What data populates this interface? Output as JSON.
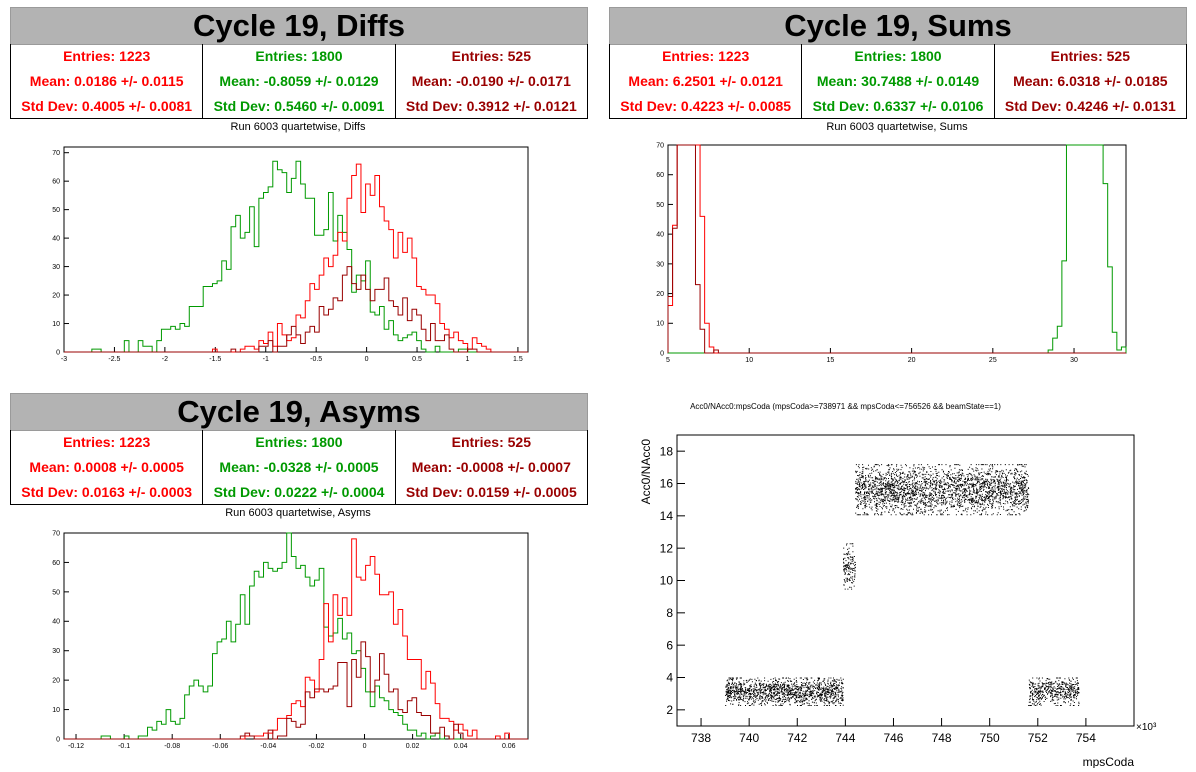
{
  "colors": {
    "series1": "#ff0000",
    "series2": "#009900",
    "series3": "#990000",
    "title_bg": "#b3b3b3"
  },
  "diffs": {
    "title": "Cycle 19, Diffs",
    "subtitle": "Run 6003 quartetwise, Diffs",
    "stats": [
      {
        "entries": "Entries: 1223",
        "mean": "Mean: 0.0186 +/- 0.0115",
        "std": "Std Dev: 0.4005 +/- 0.0081"
      },
      {
        "entries": "Entries: 1800",
        "mean": "Mean: -0.8059 +/- 0.0129",
        "std": "Std Dev: 0.5460 +/- 0.0091"
      },
      {
        "entries": "Entries: 525",
        "mean": "Mean: -0.0190 +/- 0.0171",
        "std": "Std Dev: 0.3912 +/- 0.0121"
      }
    ]
  },
  "sums": {
    "title": "Cycle 19, Sums",
    "subtitle": "Run 6003 quartetwise, Sums",
    "stats": [
      {
        "entries": "Entries: 1223",
        "mean": "Mean: 6.2501 +/- 0.0121",
        "std": "Std Dev: 0.4223 +/- 0.0085"
      },
      {
        "entries": "Entries: 1800",
        "mean": "Mean: 30.7488 +/- 0.0149",
        "std": "Std Dev: 0.6337 +/- 0.0106"
      },
      {
        "entries": "Entries: 525",
        "mean": "Mean: 6.0318 +/- 0.0185",
        "std": "Std Dev: 0.4246 +/- 0.0131"
      }
    ]
  },
  "asyms": {
    "title": "Cycle 19, Asyms",
    "subtitle": "Run 6003 quartetwise, Asyms",
    "stats": [
      {
        "entries": "Entries: 1223",
        "mean": "Mean: 0.0008 +/- 0.0005",
        "std": "Std Dev: 0.0163 +/- 0.0003"
      },
      {
        "entries": "Entries: 1800",
        "mean": "Mean: -0.0328 +/- 0.0005",
        "std": "Std Dev: 0.0222 +/- 0.0004"
      },
      {
        "entries": "Entries: 525",
        "mean": "Mean: -0.0008 +/- 0.0007",
        "std": "Std Dev: 0.0159 +/- 0.0005"
      }
    ]
  },
  "chart_data": [
    {
      "type": "histogram",
      "xlim": [
        -3,
        1.6
      ],
      "ylim": [
        0,
        72
      ],
      "xticks": [
        "-3",
        "-2.5",
        "-2",
        "-1.5",
        "-1",
        "-0.5",
        "0",
        "0.5",
        "1",
        "1.5"
      ],
      "yticks": [
        "0",
        "10",
        "20",
        "30",
        "40",
        "50",
        "60",
        "70"
      ],
      "series": [
        {
          "color": "#009900",
          "mean": -0.8059,
          "std": 0.546,
          "entries": 1800
        },
        {
          "color": "#ff0000",
          "mean": 0.0186,
          "std": 0.4005,
          "entries": 1223
        },
        {
          "color": "#990000",
          "mean": -0.019,
          "std": 0.3912,
          "entries": 525
        }
      ]
    },
    {
      "type": "histogram",
      "xlim": [
        5,
        33.2
      ],
      "ylim": [
        0,
        70
      ],
      "xticks": [
        "5",
        "10",
        "15",
        "20",
        "25",
        "30"
      ],
      "yticks": [
        "0",
        "10",
        "20",
        "30",
        "40",
        "50",
        "60",
        "70"
      ],
      "series": [
        {
          "color": "#009900",
          "mean": 30.7488,
          "std": 0.6337,
          "entries": 1800
        },
        {
          "color": "#ff0000",
          "mean": 6.2501,
          "std": 0.4223,
          "entries": 1223
        },
        {
          "color": "#990000",
          "mean": 6.0318,
          "std": 0.4246,
          "entries": 525
        }
      ]
    },
    {
      "type": "histogram",
      "xlim": [
        -0.125,
        0.068
      ],
      "ylim": [
        0,
        70
      ],
      "xticks": [
        "-0.12",
        "-0.1",
        "-0.08",
        "-0.06",
        "-0.04",
        "-0.02",
        "0",
        "0.02",
        "0.04",
        "0.06"
      ],
      "yticks": [
        "0",
        "10",
        "20",
        "30",
        "40",
        "50",
        "60",
        "70"
      ],
      "series": [
        {
          "color": "#009900",
          "mean": -0.0328,
          "std": 0.0222,
          "entries": 1800
        },
        {
          "color": "#ff0000",
          "mean": 0.0008,
          "std": 0.0163,
          "entries": 1223
        },
        {
          "color": "#990000",
          "mean": -0.0008,
          "std": 0.0159,
          "entries": 525
        }
      ]
    },
    {
      "type": "scatter",
      "title": "Acc0/NAcc0:mpsCoda (mpsCoda>=738971 && mpsCoda<=756526 && beamState==1)",
      "xlabel": "mpsCoda",
      "ylabel": "Acc0/NAcc0",
      "xexp": "×10³",
      "xlim": [
        737,
        756
      ],
      "ylim": [
        1,
        19
      ],
      "xticks": [
        "738",
        "740",
        "742",
        "744",
        "746",
        "748",
        "750",
        "752",
        "754"
      ],
      "yticks": [
        "2",
        "4",
        "6",
        "8",
        "10",
        "12",
        "14",
        "16",
        "18"
      ],
      "clusters": [
        {
          "x": [
            739,
            743.9
          ],
          "y": [
            2.3,
            4.0
          ]
        },
        {
          "x": [
            743.9,
            744.4
          ],
          "y": [
            9.5,
            12.3
          ]
        },
        {
          "x": [
            744.4,
            751.6
          ],
          "y": [
            14.1,
            17.2
          ]
        },
        {
          "x": [
            751.6,
            753.7
          ],
          "y": [
            2.3,
            4.0
          ]
        }
      ]
    }
  ]
}
